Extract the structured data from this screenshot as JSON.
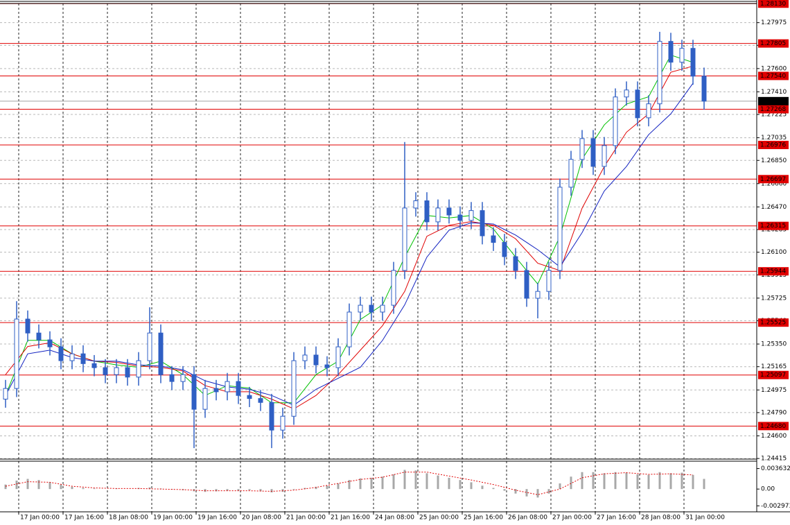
{
  "chart_data": {
    "type": "candlestick",
    "x_labels": [
      "17 Jan 00:00",
      "17 Jan 16:00",
      "18 Jan 08:00",
      "19 Jan 00:00",
      "19 Jan 16:00",
      "20 Jan 08:00",
      "21 Jan 00:00",
      "21 Jan 16:00",
      "24 Jan 08:00",
      "25 Jan 00:00",
      "25 Jan 16:00",
      "26 Jan 08:00",
      "27 Jan 00:00",
      "27 Jan 16:00",
      "28 Jan 08:00",
      "31 Jan 00:00"
    ],
    "open": [
      1.249,
      1.24987,
      1.25554,
      1.2544,
      1.25384,
      1.25327,
      1.25214,
      1.2527,
      1.2519,
      1.25157,
      1.251,
      1.25157,
      1.2508,
      1.25214,
      1.2544,
      1.251,
      1.25044,
      1.251,
      1.24817,
      1.24987,
      1.2496,
      1.25044,
      1.2493,
      1.24905,
      1.24873,
      1.24647,
      1.2476,
      1.25214,
      1.2526,
      1.2518,
      1.25157,
      1.25327,
      1.25611,
      1.25667,
      1.25611,
      1.25667,
      1.25951,
      1.26461,
      1.2652,
      1.26348,
      1.26461,
      1.26404,
      1.2636,
      1.2644,
      1.26234,
      1.2618,
      1.26064,
      1.25951,
      1.25724,
      1.2578,
      1.25951,
      1.26631,
      1.26858,
      1.27028,
      1.26801,
      1.26971,
      1.27368,
      1.27425,
      1.27198,
      1.27312,
      1.27822,
      1.27652,
      1.27765,
      1.27538
    ],
    "high": [
      1.25057,
      1.257,
      1.25624,
      1.2551,
      1.25454,
      1.25397,
      1.2534,
      1.2534,
      1.2526,
      1.25227,
      1.25227,
      1.25227,
      1.25284,
      1.2565,
      1.2551,
      1.2517,
      1.2517,
      1.2517,
      1.25057,
      1.25057,
      1.25114,
      1.25114,
      1.25,
      1.24975,
      1.24943,
      1.2483,
      1.25284,
      1.2533,
      1.2533,
      1.2525,
      1.25397,
      1.25681,
      1.25737,
      1.25737,
      1.25737,
      1.26021,
      1.27,
      1.2659,
      1.2659,
      1.26531,
      1.26531,
      1.26474,
      1.2651,
      1.2651,
      1.26304,
      1.2625,
      1.26134,
      1.26021,
      1.2585,
      1.26021,
      1.26701,
      1.26928,
      1.27098,
      1.27098,
      1.27041,
      1.27438,
      1.27495,
      1.27495,
      1.27382,
      1.279,
      1.27892,
      1.27835,
      1.27835,
      1.27608
    ],
    "low": [
      1.2483,
      1.24917,
      1.2537,
      1.25314,
      1.25257,
      1.25144,
      1.25144,
      1.2512,
      1.25087,
      1.2503,
      1.2503,
      1.2501,
      1.2501,
      1.25144,
      1.2503,
      1.24974,
      1.24974,
      1.245,
      1.24747,
      1.2489,
      1.2489,
      1.2486,
      1.24835,
      1.24803,
      1.245,
      1.24577,
      1.2469,
      1.25144,
      1.2511,
      1.25087,
      1.25087,
      1.25257,
      1.25541,
      1.25541,
      1.25541,
      1.25597,
      1.25881,
      1.26391,
      1.26278,
      1.26278,
      1.26334,
      1.2629,
      1.2629,
      1.26164,
      1.2611,
      1.25994,
      1.25881,
      1.25654,
      1.2556,
      1.2571,
      1.25881,
      1.26561,
      1.26788,
      1.26731,
      1.26731,
      1.26901,
      1.27298,
      1.27128,
      1.27128,
      1.27242,
      1.27582,
      1.27582,
      1.27468,
      1.27264
    ],
    "close": [
      1.24987,
      1.25554,
      1.2544,
      1.25384,
      1.25327,
      1.25214,
      1.2527,
      1.2519,
      1.25157,
      1.251,
      1.25157,
      1.2508,
      1.25214,
      1.2544,
      1.251,
      1.25044,
      1.251,
      1.24817,
      1.24987,
      1.2496,
      1.25044,
      1.2493,
      1.24905,
      1.24873,
      1.24647,
      1.2476,
      1.25214,
      1.2526,
      1.2518,
      1.25157,
      1.25327,
      1.25611,
      1.25667,
      1.25611,
      1.25667,
      1.25951,
      1.26461,
      1.2652,
      1.26348,
      1.26461,
      1.26404,
      1.2636,
      1.2644,
      1.26234,
      1.2618,
      1.26064,
      1.25951,
      1.25724,
      1.2578,
      1.25951,
      1.26631,
      1.26858,
      1.27028,
      1.26801,
      1.26971,
      1.27368,
      1.27425,
      1.27198,
      1.27312,
      1.27822,
      1.27652,
      1.27765,
      1.27538,
      1.27334
    ],
    "color": "#2f5fc4",
    "ylim": [
      1.2441,
      1.2816
    ],
    "yticks": [
      1.27975,
      {
        "value": 1.2779,
        "label": "1.27790"
      },
      {
        "value": 1.276,
        "label": "1.27600"
      },
      {
        "value": 1.2741,
        "label": "1.27410"
      },
      1.27225,
      1.27035,
      {
        "value": 1.2685,
        "label": "1.26850"
      },
      {
        "value": 1.2666,
        "label": "1.26660"
      },
      {
        "value": 1.2647,
        "label": "1.26470"
      },
      1.26285,
      {
        "value": 1.261,
        "label": "1.26100"
      },
      1.25915,
      1.25725,
      {
        "value": 1.2554,
        "label": "1.25540"
      },
      {
        "value": 1.2535,
        "label": "1.25350"
      },
      1.25165,
      1.24975,
      {
        "value": 1.2479,
        "label": "1.24790"
      },
      {
        "value": 1.246,
        "label": "1.24600"
      },
      1.24415
    ],
    "grid": true,
    "level_color": "#e00000",
    "levels": [
      {
        "value": 1.2813,
        "label": "1.28130"
      },
      1.27805,
      {
        "value": 1.2754,
        "label": "1.27540"
      },
      1.27268,
      1.26976,
      1.26697,
      1.26315,
      1.25944,
      1.25525,
      1.25097,
      {
        "value": 1.2468,
        "label": "1.24680"
      }
    ],
    "current_price": 1.27334,
    "moving_averages": [
      {
        "color": "#00c000",
        "x": [
          0,
          2,
          4,
          6,
          8,
          10,
          12,
          14,
          16,
          18,
          20,
          22,
          24,
          26,
          28,
          30,
          32,
          34,
          36,
          38,
          40,
          42,
          44,
          46,
          48,
          50,
          52,
          54,
          56,
          58,
          60,
          62
        ],
        "values": [
          1.2493,
          1.2538,
          1.2538,
          1.2527,
          1.2521,
          1.2518,
          1.2516,
          1.2521,
          1.251,
          1.2493,
          1.2501,
          1.2499,
          1.2487,
          1.2487,
          1.251,
          1.2521,
          1.2555,
          1.2567,
          1.2606,
          1.264,
          1.2638,
          1.264,
          1.2629,
          1.2606,
          1.2584,
          1.2623,
          1.2686,
          1.2714,
          1.2731,
          1.2737,
          1.2771,
          1.2765
        ]
      },
      {
        "color": "#e00000",
        "x": [
          0,
          2,
          4,
          6,
          8,
          10,
          12,
          14,
          16,
          18,
          20,
          22,
          24,
          26,
          28,
          30,
          32,
          34,
          36,
          38,
          40,
          42,
          44,
          46,
          48,
          50,
          52,
          54,
          56,
          58,
          60,
          62
        ],
        "values": [
          1.251,
          1.2533,
          1.2536,
          1.2527,
          1.2521,
          1.252,
          1.2517,
          1.2516,
          1.2513,
          1.2501,
          1.2496,
          1.2496,
          1.249,
          1.2482,
          1.2493,
          1.251,
          1.253,
          1.255,
          1.2578,
          1.2623,
          1.2632,
          1.2635,
          1.2632,
          1.2621,
          1.2601,
          1.2595,
          1.2646,
          1.268,
          1.2708,
          1.2723,
          1.2757,
          1.2762
        ]
      },
      {
        "color": "#1020c0",
        "x": [
          0,
          2,
          4,
          6,
          8,
          10,
          12,
          14,
          16,
          18,
          20,
          22,
          24,
          26,
          28,
          30,
          32,
          34,
          36,
          38,
          40,
          42,
          44,
          46,
          48,
          50,
          52,
          54,
          56,
          58,
          60,
          62
        ],
        "values": [
          1.2493,
          1.2527,
          1.253,
          1.2524,
          1.2521,
          1.2521,
          1.2518,
          1.2517,
          1.2514,
          1.2505,
          1.25,
          1.2498,
          1.2493,
          1.2485,
          1.2498,
          1.2507,
          1.2516,
          1.2538,
          1.2567,
          1.2606,
          1.2628,
          1.2634,
          1.2633,
          1.2624,
          1.2612,
          1.2598,
          1.2626,
          1.266,
          1.268,
          1.2706,
          1.2723,
          1.2748
        ]
      }
    ],
    "oscillator": {
      "type": "histogram",
      "color": "#a8a8a8",
      "values": [
        0.0008,
        0.0015,
        0.0018,
        0.0016,
        0.0012,
        0.0008,
        0.0004,
        0.0002,
        0.0001,
        0,
        0.0001,
        0,
        0.0002,
        0.0003,
        0.0001,
        -0.0001,
        -0.0002,
        -0.0004,
        -0.0005,
        -0.0004,
        -0.0003,
        -0.0003,
        -0.0002,
        -0.0004,
        -0.0006,
        -0.0005,
        -0.0001,
        0.0002,
        0.0004,
        0.0006,
        0.001,
        0.0016,
        0.0019,
        0.002,
        0.0022,
        0.0026,
        0.0034,
        0.0033,
        0.0028,
        0.0024,
        0.002,
        0.0016,
        0.0012,
        0.0006,
        0.0002,
        -0.0003,
        -0.0008,
        -0.0013,
        -0.0015,
        -0.0008,
        0.001,
        0.0022,
        0.003,
        0.003,
        0.0028,
        0.003,
        0.0029,
        0.0026,
        0.0025,
        0.003,
        0.0028,
        0.0029,
        0.0025,
        0.0018
      ],
      "signal": {
        "color": "#e00000",
        "x": [
          0,
          2,
          4,
          6,
          8,
          10,
          12,
          14,
          16,
          18,
          20,
          22,
          24,
          26,
          28,
          30,
          32,
          34,
          36,
          38,
          40,
          42,
          44,
          46,
          48,
          50,
          52,
          54,
          56,
          58,
          60,
          62
        ],
        "values": [
          0.0005,
          0.0013,
          0.0012,
          0.0005,
          0.0002,
          0.0001,
          0.0001,
          0,
          -0.0001,
          -0.0003,
          -0.0003,
          -0.0003,
          -0.0004,
          -0.0002,
          0.0003,
          0.001,
          0.0017,
          0.0021,
          0.003,
          0.003,
          0.0023,
          0.0016,
          0.0008,
          -0.0002,
          -0.001,
          0,
          0.002,
          0.0027,
          0.0029,
          0.0026,
          0.0027,
          0.0025
        ]
      },
      "ylim": [
        -0.00403,
        0.00481
      ],
      "yticks": [
        0.003632,
        {
          "value": 0,
          "label": "0.00"
        },
        -0.002973
      ]
    }
  }
}
